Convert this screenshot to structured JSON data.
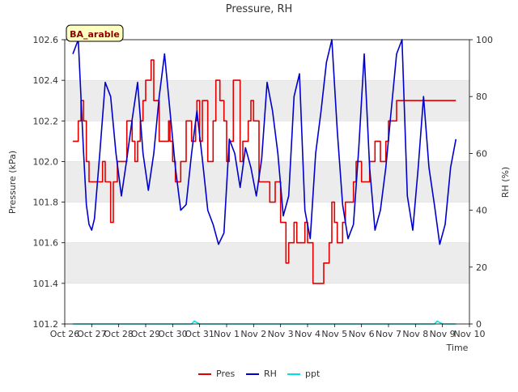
{
  "chart_data": {
    "type": "line",
    "title": "Pressure, RH",
    "xlabel": "Time",
    "ylabel_left": "Pressure (kPa)",
    "ylabel_right": "RH (%)",
    "annotation": "BA_arable",
    "ylim_left": [
      101.2,
      102.6
    ],
    "ylim_right": [
      0,
      100
    ],
    "xlim_days": [
      0,
      15
    ],
    "xticks": [
      "Oct 26",
      "Oct 27",
      "Oct 28",
      "Oct 29",
      "Oct 30",
      "Oct 31",
      "Nov 1",
      "Nov 2",
      "Nov 3",
      "Nov 4",
      "Nov 5",
      "Nov 6",
      "Nov 7",
      "Nov 8",
      "Nov 9",
      "Nov 10"
    ],
    "yticks_left": [
      "101.2",
      "101.4",
      "101.6",
      "101.8",
      "102.0",
      "102.2",
      "102.4",
      "102.6"
    ],
    "yticks_right": [
      "0",
      "20",
      "40",
      "60",
      "80",
      "100"
    ],
    "legend": [
      "Pres",
      "RH",
      "ppt"
    ],
    "legend_position": "bottom-center",
    "colors": {
      "Pres": "#e00000",
      "RH": "#0000cc",
      "ppt": "#00e0e0",
      "band": "#ececec",
      "grid": "#dddddd"
    },
    "series": [
      {
        "name": "Pres",
        "axis": "left",
        "x": [
          0.3,
          0.45,
          0.5,
          0.6,
          0.7,
          0.8,
          0.9,
          1.0,
          1.3,
          1.4,
          1.5,
          1.7,
          1.8,
          1.95,
          2.1,
          2.3,
          2.5,
          2.6,
          2.7,
          2.8,
          2.9,
          3.0,
          3.2,
          3.3,
          3.5,
          3.6,
          3.7,
          3.8,
          3.85,
          3.9,
          4.0,
          4.1,
          4.3,
          4.5,
          4.6,
          4.7,
          4.8,
          4.85,
          4.9,
          5.0,
          5.1,
          5.3,
          5.5,
          5.6,
          5.75,
          5.9,
          6.0,
          6.1,
          6.25,
          6.5,
          6.6,
          6.7,
          6.8,
          6.9,
          7.0,
          7.2,
          7.4,
          7.6,
          7.8,
          8.0,
          8.2,
          8.3,
          8.5,
          8.6,
          8.8,
          8.9,
          9.0,
          9.2,
          9.4,
          9.6,
          9.8,
          9.9,
          10.0,
          10.1,
          10.3,
          10.4,
          10.6,
          10.7,
          10.8,
          11.0,
          11.2,
          11.3,
          11.5,
          11.7,
          11.9,
          12.0,
          12.2,
          12.3,
          12.5,
          12.7,
          12.9,
          13.0,
          13.3,
          13.5,
          13.7,
          13.8,
          13.9,
          14.0,
          14.2,
          14.3,
          14.4,
          14.5
        ],
        "y": [
          102.1,
          102.1,
          102.2,
          102.3,
          102.2,
          102.0,
          101.9,
          101.9,
          101.9,
          102.0,
          101.9,
          101.7,
          101.9,
          102.0,
          102.0,
          102.2,
          102.1,
          102.0,
          102.1,
          102.2,
          102.3,
          102.4,
          102.5,
          102.3,
          102.1,
          102.1,
          102.1,
          102.1,
          102.2,
          102.1,
          102.0,
          101.9,
          102.0,
          102.2,
          102.2,
          102.1,
          102.1,
          102.2,
          102.3,
          102.1,
          102.3,
          102.0,
          102.2,
          102.4,
          102.3,
          102.2,
          102.0,
          102.1,
          102.4,
          102.0,
          102.1,
          102.1,
          102.2,
          102.3,
          102.2,
          101.9,
          101.9,
          101.8,
          101.9,
          101.7,
          101.5,
          101.6,
          101.7,
          101.6,
          101.6,
          101.7,
          101.6,
          101.4,
          101.4,
          101.5,
          101.6,
          101.8,
          101.7,
          101.6,
          101.7,
          101.8,
          101.8,
          101.9,
          102.0,
          101.9,
          101.9,
          102.0,
          102.1,
          102.0,
          102.1,
          102.2,
          102.2,
          102.3,
          102.3,
          102.3,
          102.3,
          102.3,
          102.3,
          102.3,
          102.3,
          102.3,
          102.3,
          102.3,
          102.3,
          102.3,
          102.3,
          102.3
        ]
      },
      {
        "name": "RH",
        "axis": "right",
        "x": [
          0.3,
          0.5,
          0.7,
          0.8,
          0.9,
          1.0,
          1.1,
          1.3,
          1.5,
          1.7,
          1.9,
          2.1,
          2.3,
          2.5,
          2.7,
          2.9,
          3.1,
          3.3,
          3.5,
          3.7,
          3.9,
          4.1,
          4.3,
          4.5,
          4.7,
          4.9,
          5.1,
          5.3,
          5.5,
          5.7,
          5.9,
          6.1,
          6.3,
          6.5,
          6.7,
          6.9,
          7.1,
          7.3,
          7.5,
          7.7,
          7.9,
          8.1,
          8.3,
          8.5,
          8.7,
          8.9,
          9.1,
          9.3,
          9.5,
          9.7,
          9.9,
          10.1,
          10.3,
          10.5,
          10.7,
          10.9,
          11.1,
          11.3,
          11.5,
          11.7,
          11.9,
          12.1,
          12.3,
          12.5,
          12.7,
          12.9,
          13.1,
          13.3,
          13.5,
          13.7,
          13.9,
          14.1,
          14.3,
          14.5
        ],
        "y": [
          95,
          100,
          60,
          42,
          35,
          33,
          37,
          60,
          85,
          80,
          60,
          45,
          58,
          72,
          85,
          60,
          47,
          60,
          80,
          95,
          75,
          55,
          40,
          42,
          60,
          75,
          58,
          40,
          35,
          28,
          32,
          65,
          60,
          48,
          62,
          55,
          45,
          58,
          85,
          75,
          60,
          38,
          45,
          80,
          88,
          40,
          30,
          60,
          75,
          92,
          100,
          68,
          42,
          30,
          35,
          62,
          95,
          55,
          33,
          40,
          55,
          75,
          95,
          100,
          45,
          33,
          55,
          80,
          55,
          42,
          28,
          35,
          55,
          65
        ]
      },
      {
        "name": "ppt",
        "axis": "right",
        "x": [
          0.3,
          1.0,
          2.0,
          3.0,
          4.0,
          4.7,
          4.8,
          4.9,
          5.0,
          6.0,
          7.0,
          8.0,
          9.0,
          10.0,
          11.0,
          12.0,
          13.0,
          13.7,
          13.8,
          13.9,
          14.0,
          14.5
        ],
        "y": [
          0,
          0,
          0,
          0,
          0,
          0,
          1,
          0.5,
          0,
          0,
          0,
          0,
          0,
          0,
          0,
          0,
          0,
          0,
          1,
          0.5,
          0,
          0
        ]
      }
    ]
  }
}
